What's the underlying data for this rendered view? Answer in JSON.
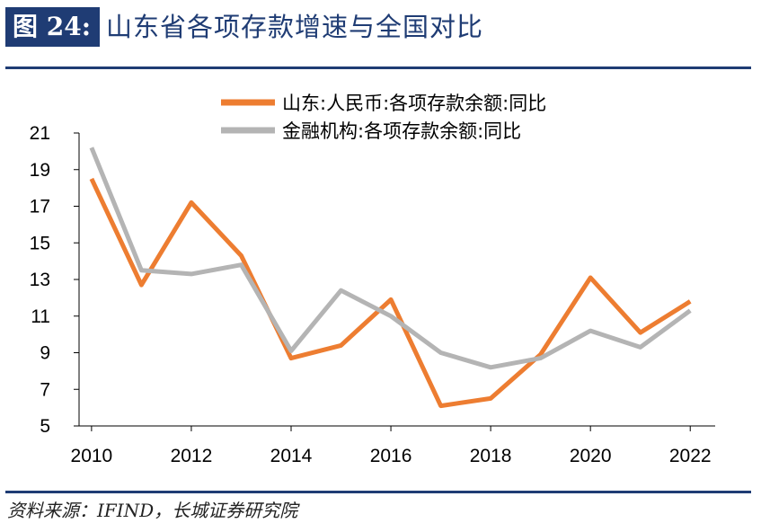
{
  "header": {
    "figure_label": "图 24:",
    "title": "山东省各项存款增速与全国对比"
  },
  "source": "资料来源：IFIND，长城证券研究院",
  "chart_data": {
    "type": "line",
    "x": [
      2010,
      2011,
      2012,
      2013,
      2014,
      2015,
      2016,
      2017,
      2018,
      2019,
      2020,
      2021,
      2022
    ],
    "xticks": [
      "2010",
      "2012",
      "2014",
      "2016",
      "2018",
      "2020",
      "2022"
    ],
    "xlim": [
      2009.75,
      2022.5
    ],
    "ylim": [
      5,
      21
    ],
    "yticks": [
      "5",
      "7",
      "9",
      "11",
      "13",
      "15",
      "17",
      "19",
      "21"
    ],
    "grid": false,
    "legend_position": "top",
    "series": [
      {
        "name": "山东:人民币:各项存款余额:同比",
        "color": "#ed7d31",
        "values": [
          18.5,
          12.7,
          17.2,
          14.3,
          8.7,
          9.4,
          11.9,
          6.1,
          6.5,
          8.9,
          13.1,
          10.1,
          11.8
        ]
      },
      {
        "name": "金融机构:各项存款余额:同比",
        "color": "#b4b4b4",
        "values": [
          20.2,
          13.5,
          13.3,
          13.8,
          9.1,
          12.4,
          11.0,
          9.0,
          8.2,
          8.7,
          10.2,
          9.3,
          11.3
        ]
      }
    ]
  }
}
